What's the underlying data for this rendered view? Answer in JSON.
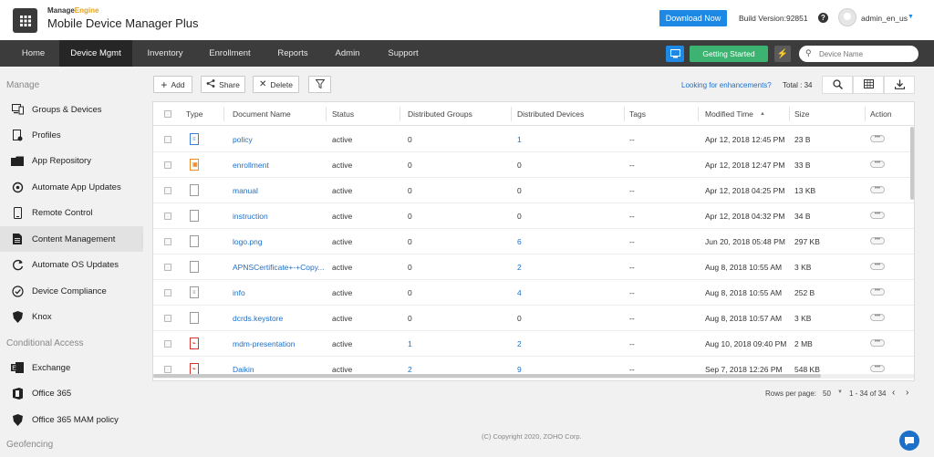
{
  "header": {
    "brand_top_a": "Manage",
    "brand_top_b": "Engine",
    "brand_main": "Mobile Device Manager Plus",
    "download_label": "Download Now",
    "build_label": "Build Version:92851",
    "help_glyph": "?",
    "user_name": "admin_en_us"
  },
  "nav": {
    "items": [
      "Home",
      "Device Mgmt",
      "Inventory",
      "Enrollment",
      "Reports",
      "Admin",
      "Support"
    ],
    "active": "Device Mgmt",
    "getting_started": "Getting Started",
    "search_placeholder": "Device Name"
  },
  "sidebar": {
    "manage_heading": "Manage",
    "manage_items": [
      {
        "label": "Groups & Devices",
        "icon": "groups-devices-icon"
      },
      {
        "label": "Profiles",
        "icon": "profiles-icon"
      },
      {
        "label": "App Repository",
        "icon": "app-repository-icon"
      },
      {
        "label": "Automate App Updates",
        "icon": "automate-app-updates-icon"
      },
      {
        "label": "Remote Control",
        "icon": "remote-control-icon"
      },
      {
        "label": "Content Management",
        "icon": "content-management-icon"
      },
      {
        "label": "Automate OS Updates",
        "icon": "automate-os-updates-icon"
      },
      {
        "label": "Device Compliance",
        "icon": "device-compliance-icon"
      },
      {
        "label": "Knox",
        "icon": "knox-shield-icon"
      }
    ],
    "active_item": "Content Management",
    "conditional_heading": "Conditional Access",
    "conditional_items": [
      {
        "label": "Exchange",
        "icon": "exchange-icon"
      },
      {
        "label": "Office 365",
        "icon": "office-365-icon"
      },
      {
        "label": "Office 365 MAM policy",
        "icon": "office-365-mam-icon"
      }
    ],
    "geofencing_heading": "Geofencing"
  },
  "toolbar": {
    "add_label": "Add",
    "share_label": "Share",
    "delete_label": "Delete",
    "enhancements_link": "Looking for enhancements?",
    "total_label": "Total : 34"
  },
  "table": {
    "columns": [
      "Type",
      "Document Name",
      "Status",
      "Distributed Groups",
      "Distributed Devices",
      "Tags",
      "Modified Time",
      "Size",
      "Action"
    ],
    "rows": [
      {
        "type_icon": "blue",
        "name": "policy",
        "status": "active",
        "groups": "0",
        "groups_link": false,
        "devices": "1",
        "devices_link": true,
        "tags": "--",
        "modified": "Apr 12, 2018 12:45 PM",
        "size": "23 B"
      },
      {
        "type_icon": "orange",
        "name": "enrollment",
        "status": "active",
        "groups": "0",
        "groups_link": false,
        "devices": "0",
        "devices_link": false,
        "tags": "--",
        "modified": "Apr 12, 2018 12:47 PM",
        "size": "33 B"
      },
      {
        "type_icon": "gray",
        "name": "manual",
        "status": "active",
        "groups": "0",
        "groups_link": false,
        "devices": "0",
        "devices_link": false,
        "tags": "--",
        "modified": "Apr 12, 2018 04:25 PM",
        "size": "13 KB"
      },
      {
        "type_icon": "gray",
        "name": "instruction",
        "status": "active",
        "groups": "0",
        "groups_link": false,
        "devices": "0",
        "devices_link": false,
        "tags": "--",
        "modified": "Apr 12, 2018 04:32 PM",
        "size": "34 B"
      },
      {
        "type_icon": "gray",
        "name": "logo.png",
        "status": "active",
        "groups": "0",
        "groups_link": false,
        "devices": "6",
        "devices_link": true,
        "tags": "--",
        "modified": "Jun 20, 2018 05:48 PM",
        "size": "297 KB"
      },
      {
        "type_icon": "gray",
        "name": "APNSCertificate+-+Copy...",
        "status": "active",
        "groups": "0",
        "groups_link": false,
        "devices": "2",
        "devices_link": true,
        "tags": "--",
        "modified": "Aug 8, 2018 10:55 AM",
        "size": "3 KB"
      },
      {
        "type_icon": "gray-lines",
        "name": "info",
        "status": "active",
        "groups": "0",
        "groups_link": false,
        "devices": "4",
        "devices_link": true,
        "tags": "--",
        "modified": "Aug 8, 2018 10:55 AM",
        "size": "252 B"
      },
      {
        "type_icon": "gray",
        "name": "dcrds.keystore",
        "status": "active",
        "groups": "0",
        "groups_link": false,
        "devices": "0",
        "devices_link": false,
        "tags": "--",
        "modified": "Aug 8, 2018 10:57 AM",
        "size": "3 KB"
      },
      {
        "type_icon": "red",
        "name": "mdm-presentation",
        "status": "active",
        "groups": "1",
        "groups_link": true,
        "devices": "2",
        "devices_link": true,
        "tags": "--",
        "modified": "Aug 10, 2018 09:40 PM",
        "size": "2 MB"
      },
      {
        "type_icon": "red",
        "name": "Daikin",
        "status": "active",
        "groups": "2",
        "groups_link": true,
        "devices": "9",
        "devices_link": true,
        "tags": "--",
        "modified": "Sep 7, 2018 12:26 PM",
        "size": "548 KB"
      }
    ]
  },
  "pagination": {
    "rows_per_page_label": "Rows per page:",
    "rows_per_page_value": "50",
    "range": "1 - 34 of 34"
  },
  "footer": {
    "copyright": "(C) Copyright 2020, ZOHO Corp."
  },
  "colors": {
    "accent_blue": "#1e88e5",
    "link_blue": "#1e6fc8",
    "getting_started_green": "#3cb371",
    "nav_dark": "#3c3c3c"
  }
}
